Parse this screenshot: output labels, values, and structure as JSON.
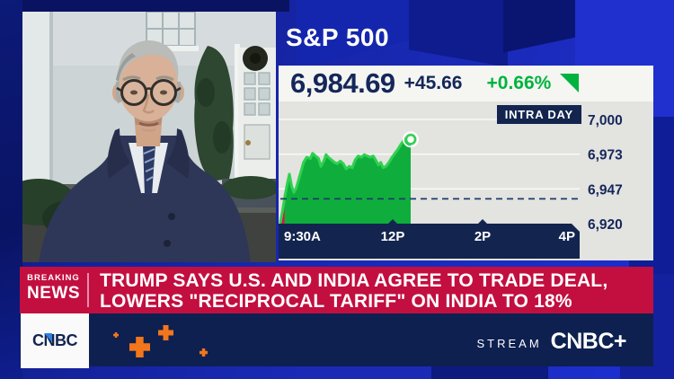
{
  "ticker_panel": {
    "index_name": "S&P 500",
    "price": "6,984.69",
    "change": "+45.66",
    "change_pct": "+0.66%",
    "badge": "INTRA DAY"
  },
  "chart_data": {
    "type": "area",
    "title": "S&P 500 intraday",
    "x_axis": {
      "labels": [
        "9:30A",
        "12P",
        "2P",
        "4P"
      ],
      "minutes": [
        0,
        150,
        270,
        390
      ],
      "range_minutes": [
        0,
        390
      ]
    },
    "y_axis": {
      "labels": [
        "7,000",
        "6,973",
        "6,947",
        "6,920"
      ],
      "values": [
        7000,
        6973,
        6947,
        6920
      ],
      "ylim": [
        6920,
        7000
      ]
    },
    "prev_close": 6939.03,
    "last_price": 6984.69,
    "series": [
      {
        "name": "S&P 500",
        "points": [
          [
            0,
            6921
          ],
          [
            3,
            6930
          ],
          [
            6,
            6941
          ],
          [
            9,
            6950
          ],
          [
            12,
            6958
          ],
          [
            15,
            6949
          ],
          [
            18,
            6944
          ],
          [
            21,
            6947
          ],
          [
            24,
            6953
          ],
          [
            28,
            6961
          ],
          [
            31,
            6967
          ],
          [
            35,
            6971
          ],
          [
            40,
            6970
          ],
          [
            43,
            6974
          ],
          [
            47,
            6972
          ],
          [
            51,
            6970
          ],
          [
            54,
            6964
          ],
          [
            58,
            6968
          ],
          [
            61,
            6973
          ],
          [
            64,
            6971
          ],
          [
            68,
            6969
          ],
          [
            72,
            6967
          ],
          [
            76,
            6966
          ],
          [
            80,
            6968
          ],
          [
            84,
            6966
          ],
          [
            88,
            6962
          ],
          [
            92,
            6964
          ],
          [
            96,
            6963
          ],
          [
            100,
            6969
          ],
          [
            104,
            6972
          ],
          [
            108,
            6971
          ],
          [
            112,
            6973
          ],
          [
            116,
            6972
          ],
          [
            120,
            6971
          ],
          [
            124,
            6972
          ],
          [
            128,
            6968
          ],
          [
            131,
            6965
          ],
          [
            134,
            6967
          ],
          [
            137,
            6963
          ],
          [
            141,
            6964
          ],
          [
            145,
            6967
          ],
          [
            149,
            6971
          ],
          [
            153,
            6974
          ],
          [
            157,
            6977
          ],
          [
            161,
            6981
          ],
          [
            165,
            6984
          ],
          [
            169,
            6986
          ],
          [
            174,
            6984.69
          ]
        ]
      }
    ],
    "grid": true,
    "marker_on_last": true,
    "colors": {
      "line": "#2fd14f",
      "fill": "#0fae3c",
      "below_prev_close": "#e0124a",
      "axis_bar": "#13254f",
      "label": "#15275a",
      "dashed": "#1f3c6d",
      "grid": "rgba(255,255,255,0.85)"
    }
  },
  "breaking_news": {
    "kicker_top": "BREAKING",
    "kicker_bottom": "NEWS",
    "headline_line1": "TRUMP SAYS U.S. AND INDIA AGREE TO TRADE DEAL,",
    "headline_line2": "LOWERS \"RECIPROCAL TARIFF\" ON INDIA TO 18%"
  },
  "bottom_bar": {
    "logo": "CNBC",
    "stream_label": "STREAM",
    "stream_brand": "CNBC+"
  },
  "colors": {
    "royal_blue": "#1b2cc8",
    "navy": "#13254f",
    "panel_gray": "#e3e3e0",
    "quote_white": "#f5f5f2",
    "green": "#00b33e",
    "banner_red": "#c20f3f",
    "orange": "#f2761b"
  }
}
